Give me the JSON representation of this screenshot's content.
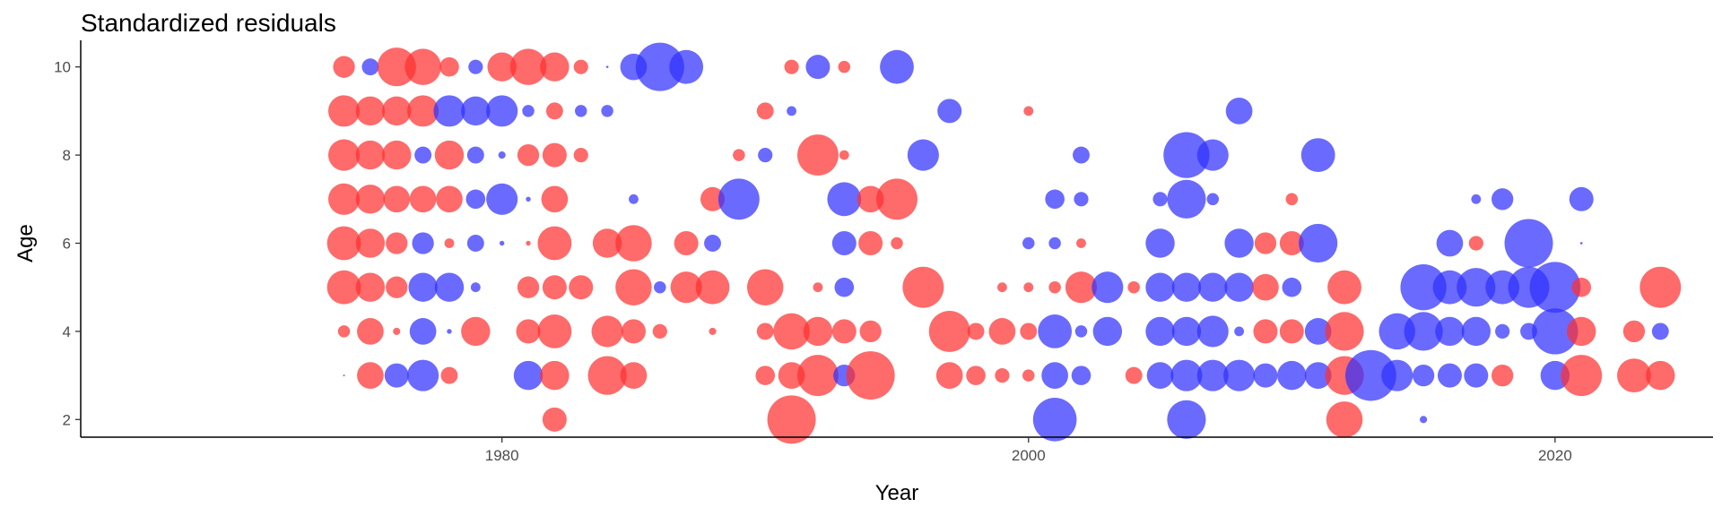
{
  "chart_data": {
    "type": "scatter",
    "title": "Standardized residuals",
    "xlabel": "Year",
    "ylabel": "Age",
    "xlim": [
      1964,
      2026
    ],
    "ylim": [
      1.6,
      10.4
    ],
    "x_ticks": [
      1980,
      2000,
      2020
    ],
    "y_ticks": [
      2,
      4,
      6,
      8,
      10
    ],
    "grid": false,
    "legend": "none",
    "colors": {
      "positive": "#ff3030",
      "negative": "#3030ff"
    },
    "series": [
      {
        "age": 10,
        "points": [
          {
            "x": 1974,
            "r": 0.45
          },
          {
            "x": 1975,
            "r": -0.35
          },
          {
            "x": 1976,
            "r": 0.8
          },
          {
            "x": 1977,
            "r": 0.75
          },
          {
            "x": 1978,
            "r": 0.4
          },
          {
            "x": 1979,
            "r": -0.3
          },
          {
            "x": 1980,
            "r": 0.6
          },
          {
            "x": 1981,
            "r": 0.75
          },
          {
            "x": 1982,
            "r": 0.6
          },
          {
            "x": 1983,
            "r": 0.3
          },
          {
            "x": 1984,
            "r": -0.05
          },
          {
            "x": 1985,
            "r": -0.55
          },
          {
            "x": 1986,
            "r": -1.0
          },
          {
            "x": 1987,
            "r": -0.7
          },
          {
            "x": 1991,
            "r": 0.3
          },
          {
            "x": 1992,
            "r": -0.5
          },
          {
            "x": 1993,
            "r": 0.25
          },
          {
            "x": 1995,
            "r": -0.7
          }
        ]
      },
      {
        "age": 9,
        "points": [
          {
            "x": 1974,
            "r": 0.65
          },
          {
            "x": 1975,
            "r": 0.6
          },
          {
            "x": 1976,
            "r": 0.6
          },
          {
            "x": 1977,
            "r": 0.65
          },
          {
            "x": 1978,
            "r": -0.65
          },
          {
            "x": 1979,
            "r": -0.6
          },
          {
            "x": 1980,
            "r": -0.65
          },
          {
            "x": 1981,
            "r": -0.25
          },
          {
            "x": 1982,
            "r": 0.35
          },
          {
            "x": 1983,
            "r": -0.25
          },
          {
            "x": 1984,
            "r": -0.25
          },
          {
            "x": 1990,
            "r": 0.35
          },
          {
            "x": 1991,
            "r": -0.2
          },
          {
            "x": 1997,
            "r": -0.5
          },
          {
            "x": 2000,
            "r": 0.2
          },
          {
            "x": 2008,
            "r": -0.55
          }
        ]
      },
      {
        "age": 8,
        "points": [
          {
            "x": 1974,
            "r": 0.65
          },
          {
            "x": 1975,
            "r": 0.6
          },
          {
            "x": 1976,
            "r": 0.6
          },
          {
            "x": 1977,
            "r": -0.35
          },
          {
            "x": 1978,
            "r": 0.6
          },
          {
            "x": 1979,
            "r": -0.35
          },
          {
            "x": 1980,
            "r": -0.15
          },
          {
            "x": 1981,
            "r": 0.45
          },
          {
            "x": 1982,
            "r": 0.5
          },
          {
            "x": 1983,
            "r": 0.3
          },
          {
            "x": 1989,
            "r": 0.25
          },
          {
            "x": 1990,
            "r": -0.3
          },
          {
            "x": 1992,
            "r": 0.85
          },
          {
            "x": 1993,
            "r": 0.2
          },
          {
            "x": 1996,
            "r": -0.65
          },
          {
            "x": 2002,
            "r": -0.35
          },
          {
            "x": 2006,
            "r": -0.95
          },
          {
            "x": 2007,
            "r": -0.65
          },
          {
            "x": 2011,
            "r": -0.7
          }
        ]
      },
      {
        "age": 7,
        "points": [
          {
            "x": 1974,
            "r": 0.65
          },
          {
            "x": 1975,
            "r": 0.6
          },
          {
            "x": 1976,
            "r": 0.55
          },
          {
            "x": 1977,
            "r": 0.55
          },
          {
            "x": 1978,
            "r": 0.55
          },
          {
            "x": 1979,
            "r": -0.4
          },
          {
            "x": 1980,
            "r": -0.65
          },
          {
            "x": 1981,
            "r": -0.1
          },
          {
            "x": 1982,
            "r": 0.55
          },
          {
            "x": 1985,
            "r": -0.2
          },
          {
            "x": 1988,
            "r": 0.5
          },
          {
            "x": 1989,
            "r": -0.85
          },
          {
            "x": 1993,
            "r": -0.7
          },
          {
            "x": 1994,
            "r": 0.55
          },
          {
            "x": 1995,
            "r": 0.85
          },
          {
            "x": 2001,
            "r": -0.4
          },
          {
            "x": 2002,
            "r": -0.3
          },
          {
            "x": 2005,
            "r": -0.3
          },
          {
            "x": 2006,
            "r": -0.8
          },
          {
            "x": 2007,
            "r": -0.25
          },
          {
            "x": 2010,
            "r": 0.25
          },
          {
            "x": 2017,
            "r": -0.2
          },
          {
            "x": 2018,
            "r": -0.45
          },
          {
            "x": 2021,
            "r": -0.5
          }
        ]
      },
      {
        "age": 6,
        "points": [
          {
            "x": 1974,
            "r": 0.7
          },
          {
            "x": 1975,
            "r": 0.6
          },
          {
            "x": 1976,
            "r": 0.45
          },
          {
            "x": 1977,
            "r": -0.45
          },
          {
            "x": 1978,
            "r": 0.2
          },
          {
            "x": 1979,
            "r": -0.35
          },
          {
            "x": 1980,
            "r": -0.1
          },
          {
            "x": 1981,
            "r": 0.1
          },
          {
            "x": 1982,
            "r": 0.7
          },
          {
            "x": 1984,
            "r": 0.6
          },
          {
            "x": 1985,
            "r": 0.75
          },
          {
            "x": 1987,
            "r": 0.5
          },
          {
            "x": 1988,
            "r": -0.35
          },
          {
            "x": 1993,
            "r": -0.5
          },
          {
            "x": 1994,
            "r": 0.5
          },
          {
            "x": 1995,
            "r": 0.25
          },
          {
            "x": 2000,
            "r": -0.25
          },
          {
            "x": 2001,
            "r": -0.25
          },
          {
            "x": 2002,
            "r": 0.2
          },
          {
            "x": 2005,
            "r": -0.6
          },
          {
            "x": 2008,
            "r": -0.6
          },
          {
            "x": 2009,
            "r": 0.45
          },
          {
            "x": 2010,
            "r": 0.5
          },
          {
            "x": 2011,
            "r": -0.8
          },
          {
            "x": 2016,
            "r": -0.55
          },
          {
            "x": 2017,
            "r": 0.3
          },
          {
            "x": 2019,
            "r": -1.0
          },
          {
            "x": 2021,
            "r": -0.05
          }
        ]
      },
      {
        "age": 5,
        "points": [
          {
            "x": 1974,
            "r": 0.7
          },
          {
            "x": 1975,
            "r": 0.6
          },
          {
            "x": 1976,
            "r": 0.45
          },
          {
            "x": 1977,
            "r": -0.6
          },
          {
            "x": 1978,
            "r": -0.6
          },
          {
            "x": 1979,
            "r": -0.2
          },
          {
            "x": 1981,
            "r": 0.45
          },
          {
            "x": 1982,
            "r": 0.5
          },
          {
            "x": 1983,
            "r": 0.5
          },
          {
            "x": 1985,
            "r": 0.75
          },
          {
            "x": 1986,
            "r": -0.25
          },
          {
            "x": 1987,
            "r": 0.65
          },
          {
            "x": 1988,
            "r": 0.7
          },
          {
            "x": 1990,
            "r": 0.75
          },
          {
            "x": 1992,
            "r": 0.2
          },
          {
            "x": 1993,
            "r": -0.4
          },
          {
            "x": 1996,
            "r": 0.85
          },
          {
            "x": 1999,
            "r": 0.2
          },
          {
            "x": 2000,
            "r": 0.2
          },
          {
            "x": 2001,
            "r": 0.25
          },
          {
            "x": 2002,
            "r": 0.65
          },
          {
            "x": 2003,
            "r": -0.65
          },
          {
            "x": 2004,
            "r": 0.25
          },
          {
            "x": 2005,
            "r": -0.6
          },
          {
            "x": 2006,
            "r": -0.6
          },
          {
            "x": 2007,
            "r": -0.6
          },
          {
            "x": 2008,
            "r": -0.6
          },
          {
            "x": 2009,
            "r": 0.55
          },
          {
            "x": 2010,
            "r": -0.4
          },
          {
            "x": 2012,
            "r": 0.7
          },
          {
            "x": 2015,
            "r": -0.95
          },
          {
            "x": 2016,
            "r": -0.7
          },
          {
            "x": 2017,
            "r": -0.8
          },
          {
            "x": 2018,
            "r": -0.7
          },
          {
            "x": 2019,
            "r": -0.85
          },
          {
            "x": 2020,
            "r": -1.05
          },
          {
            "x": 2021,
            "r": 0.4
          },
          {
            "x": 2024,
            "r": 0.85
          }
        ]
      },
      {
        "age": 4,
        "points": [
          {
            "x": 1974,
            "r": 0.25
          },
          {
            "x": 1975,
            "r": 0.55
          },
          {
            "x": 1976,
            "r": 0.15
          },
          {
            "x": 1977,
            "r": -0.55
          },
          {
            "x": 1978,
            "r": -0.1
          },
          {
            "x": 1979,
            "r": 0.6
          },
          {
            "x": 1981,
            "r": 0.5
          },
          {
            "x": 1982,
            "r": 0.7
          },
          {
            "x": 1984,
            "r": 0.65
          },
          {
            "x": 1985,
            "r": 0.5
          },
          {
            "x": 1986,
            "r": 0.3
          },
          {
            "x": 1988,
            "r": 0.15
          },
          {
            "x": 1990,
            "r": 0.35
          },
          {
            "x": 1991,
            "r": 0.75
          },
          {
            "x": 1992,
            "r": 0.6
          },
          {
            "x": 1993,
            "r": 0.5
          },
          {
            "x": 1994,
            "r": 0.45
          },
          {
            "x": 1997,
            "r": 0.85
          },
          {
            "x": 1998,
            "r": 0.35
          },
          {
            "x": 1999,
            "r": 0.55
          },
          {
            "x": 2000,
            "r": 0.35
          },
          {
            "x": 2001,
            "r": -0.7
          },
          {
            "x": 2002,
            "r": -0.25
          },
          {
            "x": 2003,
            "r": -0.6
          },
          {
            "x": 2005,
            "r": -0.6
          },
          {
            "x": 2006,
            "r": -0.6
          },
          {
            "x": 2007,
            "r": -0.65
          },
          {
            "x": 2008,
            "r": -0.2
          },
          {
            "x": 2009,
            "r": 0.5
          },
          {
            "x": 2010,
            "r": 0.5
          },
          {
            "x": 2011,
            "r": -0.55
          },
          {
            "x": 2012,
            "r": 0.8
          },
          {
            "x": 2014,
            "r": -0.75
          },
          {
            "x": 2015,
            "r": -0.8
          },
          {
            "x": 2016,
            "r": -0.6
          },
          {
            "x": 2017,
            "r": -0.6
          },
          {
            "x": 2018,
            "r": -0.3
          },
          {
            "x": 2019,
            "r": -0.35
          },
          {
            "x": 2020,
            "r": -0.95
          },
          {
            "x": 2021,
            "r": 0.6
          },
          {
            "x": 2023,
            "r": 0.45
          },
          {
            "x": 2024,
            "r": -0.35
          }
        ]
      },
      {
        "age": 3,
        "points": [
          {
            "x": 1974,
            "r": -0.03
          },
          {
            "x": 1975,
            "r": 0.55
          },
          {
            "x": 1976,
            "r": -0.5
          },
          {
            "x": 1977,
            "r": -0.65
          },
          {
            "x": 1978,
            "r": 0.35
          },
          {
            "x": 1981,
            "r": -0.6
          },
          {
            "x": 1982,
            "r": 0.6
          },
          {
            "x": 1984,
            "r": 0.8
          },
          {
            "x": 1985,
            "r": 0.55
          },
          {
            "x": 1990,
            "r": 0.4
          },
          {
            "x": 1991,
            "r": 0.55
          },
          {
            "x": 1992,
            "r": 0.85
          },
          {
            "x": 1993,
            "r": -0.45
          },
          {
            "x": 1994,
            "r": 1.0
          },
          {
            "x": 1997,
            "r": 0.55
          },
          {
            "x": 1998,
            "r": 0.4
          },
          {
            "x": 1999,
            "r": 0.3
          },
          {
            "x": 2000,
            "r": 0.25
          },
          {
            "x": 2001,
            "r": -0.55
          },
          {
            "x": 2002,
            "r": -0.4
          },
          {
            "x": 2004,
            "r": 0.35
          },
          {
            "x": 2005,
            "r": -0.55
          },
          {
            "x": 2006,
            "r": -0.65
          },
          {
            "x": 2007,
            "r": -0.65
          },
          {
            "x": 2008,
            "r": -0.65
          },
          {
            "x": 2009,
            "r": -0.5
          },
          {
            "x": 2010,
            "r": -0.6
          },
          {
            "x": 2011,
            "r": -0.55
          },
          {
            "x": 2012,
            "r": 0.8
          },
          {
            "x": 2013,
            "r": -1.05
          },
          {
            "x": 2014,
            "r": -0.65
          },
          {
            "x": 2015,
            "r": -0.45
          },
          {
            "x": 2016,
            "r": -0.5
          },
          {
            "x": 2017,
            "r": -0.5
          },
          {
            "x": 2018,
            "r": 0.45
          },
          {
            "x": 2020,
            "r": -0.6
          },
          {
            "x": 2021,
            "r": 0.85
          },
          {
            "x": 2023,
            "r": 0.7
          },
          {
            "x": 2024,
            "r": 0.6
          }
        ]
      },
      {
        "age": 2,
        "points": [
          {
            "x": 1982,
            "r": 0.5
          },
          {
            "x": 1991,
            "r": 1.0
          },
          {
            "x": 2001,
            "r": -0.9
          },
          {
            "x": 2006,
            "r": -0.8
          },
          {
            "x": 2012,
            "r": 0.75
          },
          {
            "x": 2015,
            "r": -0.15
          }
        ]
      }
    ]
  }
}
